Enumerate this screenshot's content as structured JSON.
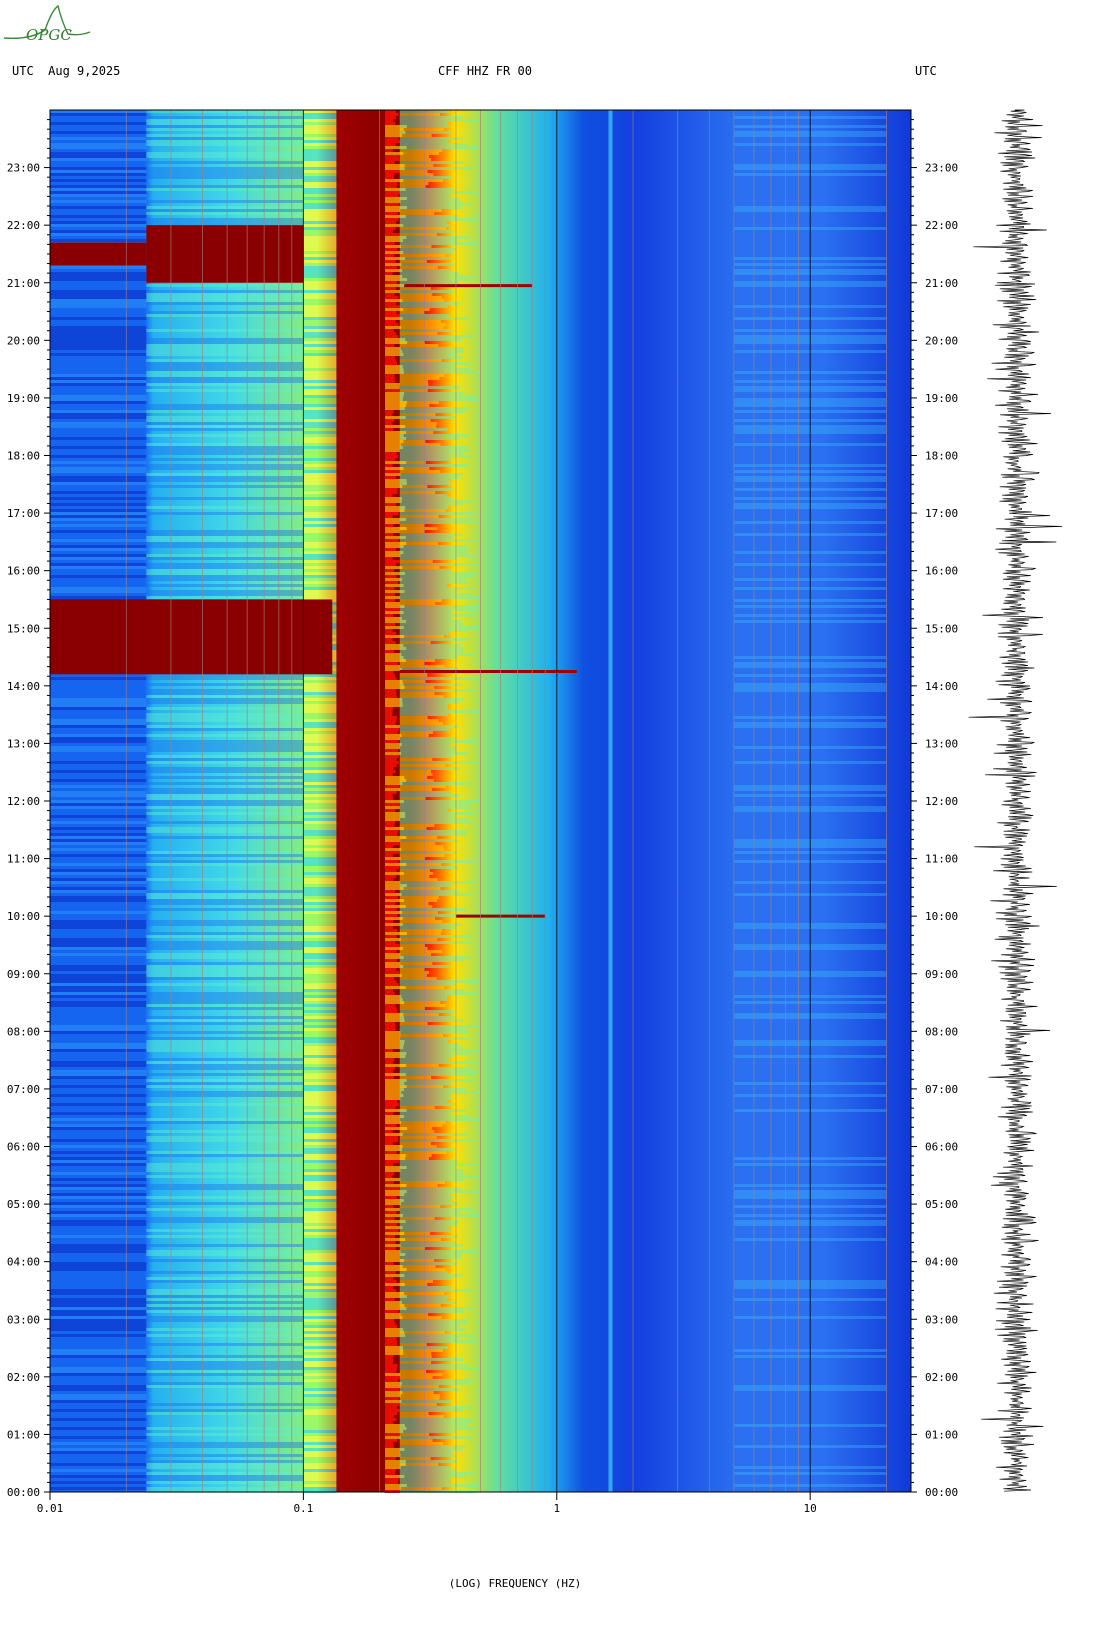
{
  "logo": {
    "text": "OPGC",
    "color": "#3a8a3a"
  },
  "header": {
    "left": "UTC  Aug 9,2025",
    "center": "CFF HHZ FR 00",
    "right": "UTC"
  },
  "chart_data": {
    "type": "heatmap",
    "title": "CFF HHZ FR 00",
    "xlabel": "(LOG) FREQUENCY (HZ)",
    "ylabel": "",
    "x_scale": "log",
    "xlim": [
      0.01,
      25
    ],
    "ylim_hours": [
      0,
      24
    ],
    "x_ticks": [
      {
        "value": 0.01,
        "label": "0.01"
      },
      {
        "value": 0.1,
        "label": "0.1"
      },
      {
        "value": 1,
        "label": "1"
      },
      {
        "value": 10,
        "label": "10"
      }
    ],
    "y_ticks": [
      "00:00",
      "01:00",
      "02:00",
      "03:00",
      "04:00",
      "05:00",
      "06:00",
      "07:00",
      "08:00",
      "09:00",
      "10:00",
      "11:00",
      "12:00",
      "13:00",
      "14:00",
      "15:00",
      "16:00",
      "17:00",
      "18:00",
      "19:00",
      "20:00",
      "21:00",
      "22:00",
      "23:00"
    ],
    "colormap": [
      "#0000b0",
      "#1060ff",
      "#20c8ff",
      "#80ff80",
      "#ffff00",
      "#ff8000",
      "#ff0000",
      "#800000"
    ],
    "events_utc_hours": [
      14.25,
      10.0,
      20.95
    ],
    "background_color": "#1850e8"
  }
}
